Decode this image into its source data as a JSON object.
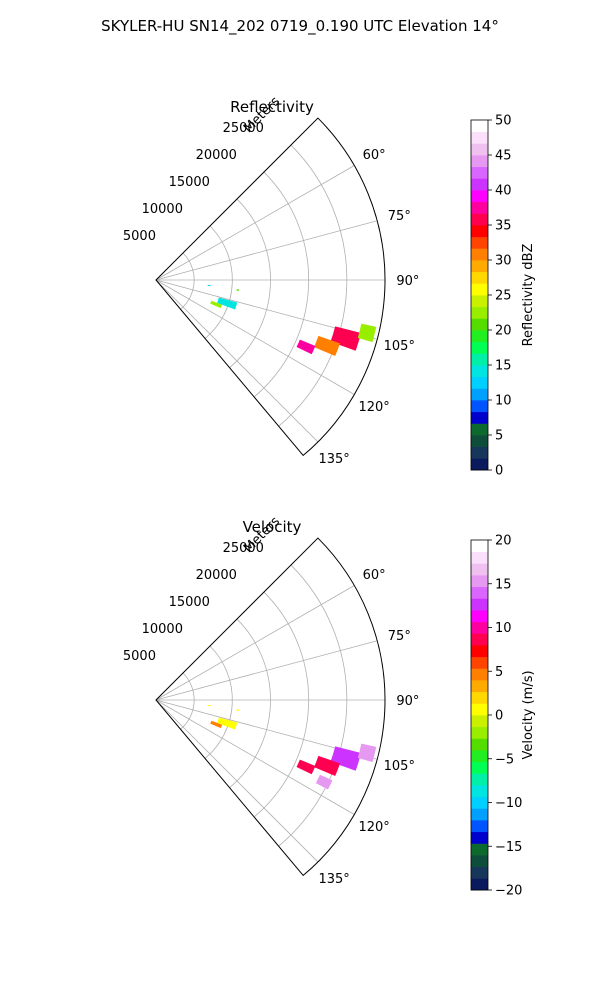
{
  "figure_title": "SKYLER-HU  SN14_202  0719_0.190 UTC Elevation 14°",
  "chart_data": [
    {
      "type": "heatmap",
      "projection": "polar-sector",
      "title": "Reflectivity",
      "range_label": "Meters",
      "range_ticks": [
        "5000",
        "10000",
        "15000",
        "20000",
        "25000"
      ],
      "range_values": [
        5000,
        10000,
        15000,
        20000,
        25000
      ],
      "rmax": 30000,
      "azimuth_ticks": [
        "60°",
        "75°",
        "90°",
        "105°",
        "120°",
        "135°"
      ],
      "azimuth_values": [
        60,
        75,
        90,
        105,
        120,
        135
      ],
      "azimuth_range": [
        45,
        140
      ],
      "grid": true,
      "colorbar": {
        "label": "Reflectivity dBZ",
        "min": 0,
        "max": 50,
        "ticks": [
          "0",
          "5",
          "10",
          "15",
          "20",
          "25",
          "30",
          "35",
          "40",
          "45",
          "50"
        ],
        "tick_values": [
          0,
          5,
          10,
          15,
          20,
          25,
          30,
          35,
          40,
          45,
          50
        ],
        "colors": [
          "#0b1a5c",
          "#16365c",
          "#0e4d3a",
          "#0d6a2e",
          "#0000cc",
          "#0055ff",
          "#00a0ff",
          "#00d0ff",
          "#00e5e0",
          "#00f0a8",
          "#00ff55",
          "#22ee22",
          "#55dd00",
          "#99ee00",
          "#c8f000",
          "#ffff00",
          "#ffd800",
          "#ffaa00",
          "#ff8000",
          "#ff4400",
          "#ff0000",
          "#ff0050",
          "#ff00a0",
          "#ff00ff",
          "#cc33ff",
          "#d966ff",
          "#e699f0",
          "#f0c0f0",
          "#fae0fa",
          "#ffffff"
        ]
      },
      "echoes": [
        {
          "azimuth": 107,
          "range": 26000,
          "az_width": 5,
          "range_depth": 3500,
          "value": 36
        },
        {
          "azimuth": 104,
          "range": 28500,
          "az_width": 4,
          "range_depth": 2000,
          "value": 22
        },
        {
          "azimuth": 111,
          "range": 24000,
          "az_width": 4,
          "range_depth": 3000,
          "value": 30
        },
        {
          "azimuth": 114,
          "range": 21500,
          "az_width": 3,
          "range_depth": 2200,
          "value": 38
        },
        {
          "azimuth": 108,
          "range": 9800,
          "az_width": 5,
          "range_depth": 2500,
          "value": 14
        },
        {
          "azimuth": 112,
          "range": 8500,
          "az_width": 3,
          "range_depth": 1500,
          "value": 22
        },
        {
          "azimuth": 96,
          "range": 7000,
          "az_width": 1,
          "range_depth": 400,
          "value": 12
        },
        {
          "azimuth": 97,
          "range": 10800,
          "az_width": 1,
          "range_depth": 300,
          "value": 20
        }
      ]
    },
    {
      "type": "heatmap",
      "projection": "polar-sector",
      "title": "Velocity",
      "range_label": "Meters",
      "range_ticks": [
        "5000",
        "10000",
        "15000",
        "20000",
        "25000"
      ],
      "range_values": [
        5000,
        10000,
        15000,
        20000,
        25000
      ],
      "rmax": 30000,
      "azimuth_ticks": [
        "60°",
        "75°",
        "90°",
        "105°",
        "120°",
        "135°"
      ],
      "azimuth_values": [
        60,
        75,
        90,
        105,
        120,
        135
      ],
      "azimuth_range": [
        45,
        140
      ],
      "grid": true,
      "colorbar": {
        "label": "Velocity (m/s)",
        "min": -20,
        "max": 20,
        "ticks": [
          "−20",
          "−15",
          "−10",
          "−5",
          "0",
          "5",
          "10",
          "15",
          "20"
        ],
        "tick_values": [
          -20,
          -15,
          -10,
          -5,
          0,
          5,
          10,
          15,
          20
        ],
        "colors": [
          "#0b1a5c",
          "#16365c",
          "#0e4d3a",
          "#0d6a2e",
          "#0000cc",
          "#0055ff",
          "#00a0ff",
          "#00d0ff",
          "#00e5e0",
          "#00f0a8",
          "#00ff55",
          "#22ee22",
          "#55dd00",
          "#99ee00",
          "#c8f000",
          "#ffff00",
          "#ffd800",
          "#ffaa00",
          "#ff8000",
          "#ff4400",
          "#ff0000",
          "#ff0050",
          "#ff00a0",
          "#ff00ff",
          "#cc33ff",
          "#d966ff",
          "#e699f0",
          "#f0c0f0",
          "#fae0fa",
          "#ffffff"
        ]
      },
      "echoes": [
        {
          "azimuth": 107,
          "range": 26000,
          "az_width": 5,
          "range_depth": 3500,
          "value": 13
        },
        {
          "azimuth": 104,
          "range": 28500,
          "az_width": 4,
          "range_depth": 2000,
          "value": 15
        },
        {
          "azimuth": 111,
          "range": 24000,
          "az_width": 4,
          "range_depth": 3000,
          "value": 9
        },
        {
          "azimuth": 114,
          "range": 21500,
          "az_width": 3,
          "range_depth": 2200,
          "value": 9
        },
        {
          "azimuth": 116,
          "range": 24500,
          "az_width": 3,
          "range_depth": 1800,
          "value": 15
        },
        {
          "azimuth": 108,
          "range": 9800,
          "az_width": 5,
          "range_depth": 2500,
          "value": 1
        },
        {
          "azimuth": 112,
          "range": 8500,
          "az_width": 3,
          "range_depth": 1500,
          "value": 5
        },
        {
          "azimuth": 96,
          "range": 7000,
          "az_width": 1,
          "range_depth": 400,
          "value": 1
        },
        {
          "azimuth": 97,
          "range": 10800,
          "az_width": 1,
          "range_depth": 300,
          "value": 1
        }
      ]
    }
  ]
}
